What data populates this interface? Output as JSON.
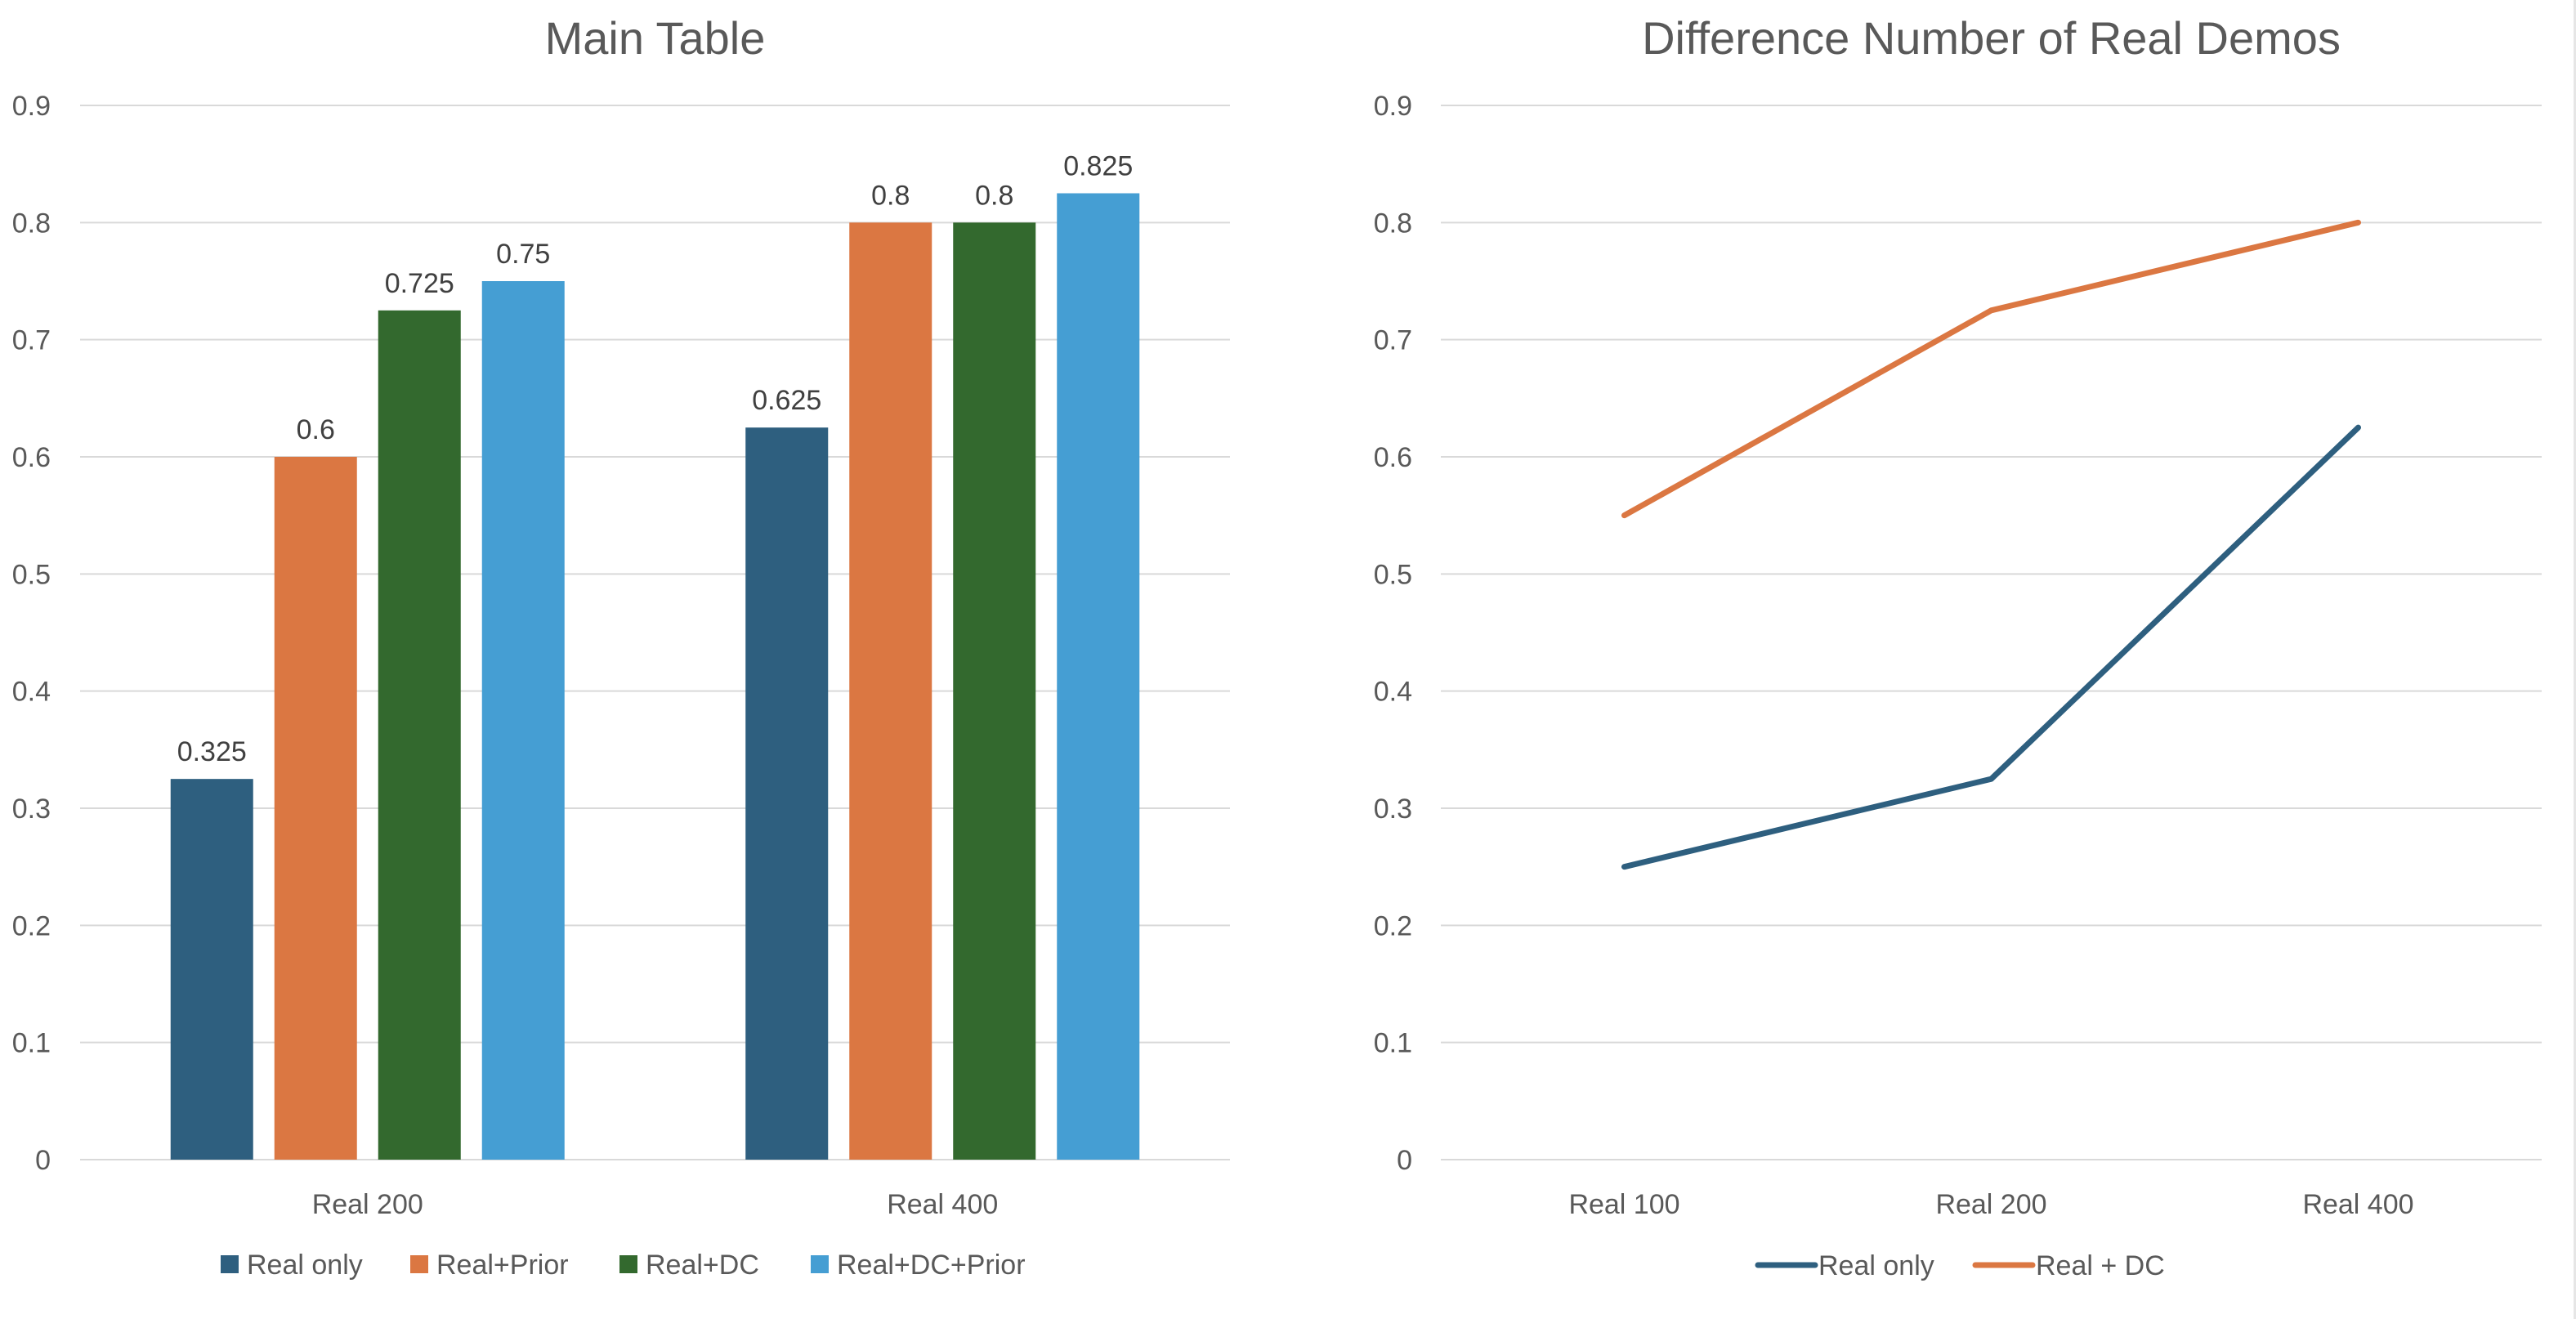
{
  "chart_data": [
    {
      "type": "bar",
      "title": "Main Table",
      "categories": [
        "Real 200",
        "Real 400"
      ],
      "series": [
        {
          "name": "Real only",
          "values": [
            0.325,
            0.625
          ],
          "color": "#2e5f7f"
        },
        {
          "name": "Real+Prior",
          "values": [
            0.6,
            0.8
          ],
          "color": "#db7742"
        },
        {
          "name": "Real+DC",
          "values": [
            0.725,
            0.8
          ],
          "color": "#33692e"
        },
        {
          "name": "Real+DC+Prior",
          "values": [
            0.75,
            0.825
          ],
          "color": "#459ed3"
        }
      ],
      "data_labels": [
        [
          "0.325",
          "0.625"
        ],
        [
          "0.6",
          "0.8"
        ],
        [
          "0.725",
          "0.8"
        ],
        [
          "0.75",
          "0.825"
        ]
      ],
      "ylim": [
        0,
        0.9
      ],
      "yticks": [
        "0",
        "0.1",
        "0.2",
        "0.3",
        "0.4",
        "0.5",
        "0.6",
        "0.7",
        "0.8",
        "0.9"
      ],
      "grid": true,
      "legend_position": "bottom"
    },
    {
      "type": "line",
      "title": "Difference Number of Real Demos",
      "categories": [
        "Real 100",
        "Real 200",
        "Real 400"
      ],
      "series": [
        {
          "name": "Real only",
          "values": [
            0.25,
            0.325,
            0.625
          ],
          "color": "#2e5f7f"
        },
        {
          "name": "Real + DC",
          "values": [
            0.55,
            0.725,
            0.8
          ],
          "color": "#db7742"
        }
      ],
      "ylim": [
        0,
        0.9
      ],
      "yticks": [
        "0",
        "0.1",
        "0.2",
        "0.3",
        "0.4",
        "0.5",
        "0.6",
        "0.7",
        "0.8",
        "0.9"
      ],
      "grid": true,
      "legend_position": "bottom"
    }
  ]
}
